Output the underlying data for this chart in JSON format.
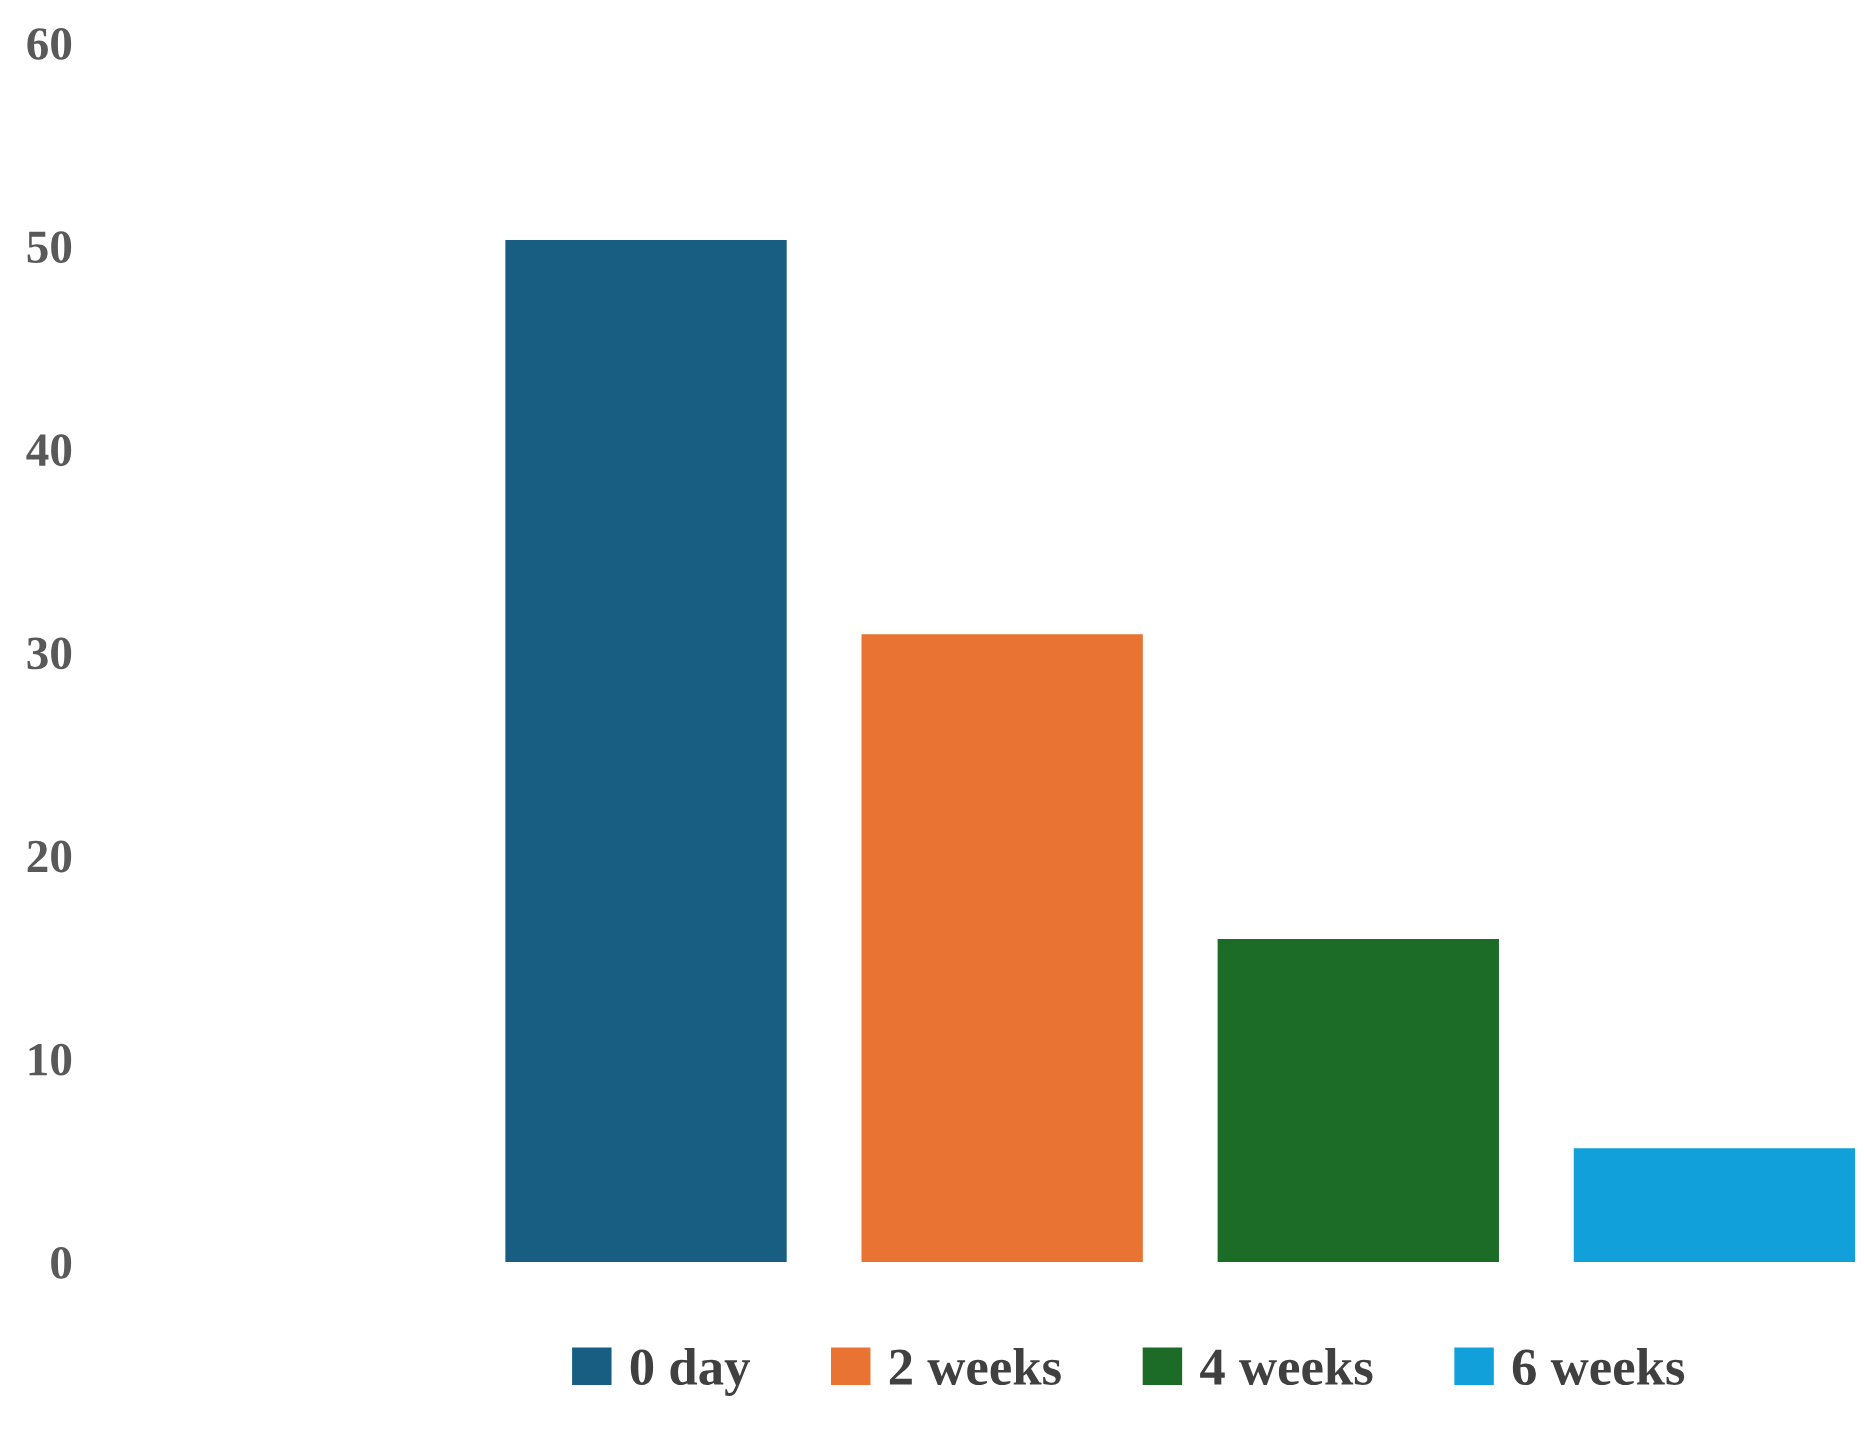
{
  "chart_data": {
    "type": "bar",
    "categories": [
      null
    ],
    "series": [
      {
        "name": "0 day",
        "color": "#175e82",
        "values": [
          50.3
        ]
      },
      {
        "name": "2 weeks",
        "color": "#e97333",
        "values": [
          30.9
        ]
      },
      {
        "name": "4 weeks",
        "color": "#1c6b27",
        "values": [
          15.9
        ]
      },
      {
        "name": "6 weeks",
        "color": "#11a0d9",
        "values": [
          5.6
        ]
      }
    ],
    "ylim": [
      0,
      60
    ],
    "yticks": [
      0,
      10,
      20,
      30,
      40,
      50,
      60
    ],
    "grid": false,
    "legend": "bottom"
  }
}
